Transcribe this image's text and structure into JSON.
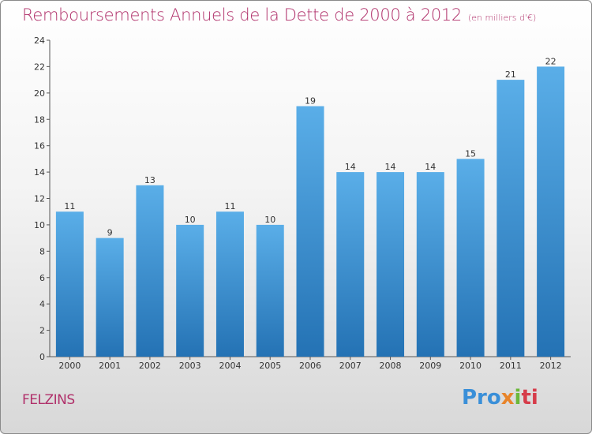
{
  "header": {
    "title": "Remboursements Annuels de la Dette de 2000 à 2012",
    "unit": "(en milliers d'€)"
  },
  "footer": {
    "commune": "FELZINS",
    "logo_parts": [
      "Pro",
      "x",
      "i",
      "ti"
    ]
  },
  "chart_data": {
    "type": "bar",
    "title": "Remboursements Annuels de la Dette de 2000 à 2012",
    "subtitle": "(en milliers d'€)",
    "categories": [
      "2000",
      "2001",
      "2002",
      "2003",
      "2004",
      "2005",
      "2006",
      "2007",
      "2008",
      "2009",
      "2010",
      "2011",
      "2012"
    ],
    "values": [
      11,
      9,
      13,
      10,
      11,
      10,
      19,
      14,
      14,
      14,
      15,
      21,
      22
    ],
    "ylim": [
      0,
      24
    ],
    "yticks": [
      0,
      2,
      4,
      6,
      8,
      10,
      12,
      14,
      16,
      18,
      20,
      22,
      24
    ],
    "grid": false,
    "bar_color_top": "#5aaee8",
    "bar_color_bottom": "#2472b4"
  }
}
